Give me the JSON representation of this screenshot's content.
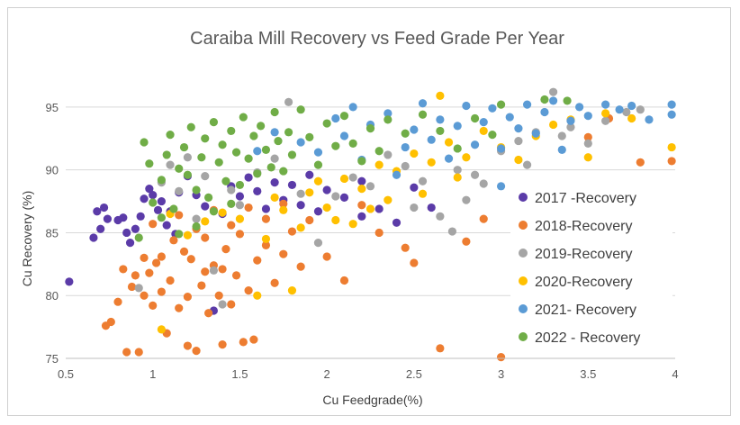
{
  "chart_data": {
    "type": "scatter",
    "title": "Caraiba Mill Recovery vs Feed Grade Per Year",
    "xlabel": "Cu Feedgrade(%)",
    "ylabel": "Cu Recovery (%)",
    "xlim": [
      0.5,
      4
    ],
    "ylim": [
      75,
      97
    ],
    "xticks": [
      "0.5",
      "1",
      "1.5",
      "2",
      "2.5",
      "3",
      "3.5",
      "4"
    ],
    "yticks": [
      "75",
      "80",
      "85",
      "90",
      "95"
    ],
    "grid": "horizontal",
    "legend_position": "right",
    "series": [
      {
        "name": "2017 -Recovery",
        "color": "#5b3ba8",
        "points": [
          [
            0.52,
            81.1
          ],
          [
            0.66,
            84.6
          ],
          [
            0.68,
            86.7
          ],
          [
            0.72,
            87.0
          ],
          [
            0.74,
            86.1
          ],
          [
            0.7,
            85.3
          ],
          [
            0.8,
            86.0
          ],
          [
            0.83,
            86.2
          ],
          [
            0.85,
            85.0
          ],
          [
            0.87,
            84.2
          ],
          [
            0.9,
            85.3
          ],
          [
            0.93,
            86.3
          ],
          [
            0.95,
            87.7
          ],
          [
            0.98,
            88.5
          ],
          [
            1.0,
            88.0
          ],
          [
            1.03,
            86.8
          ],
          [
            1.05,
            87.5
          ],
          [
            1.08,
            85.6
          ],
          [
            1.1,
            86.7
          ],
          [
            1.13,
            84.9
          ],
          [
            1.15,
            88.2
          ],
          [
            1.2,
            89.5
          ],
          [
            1.25,
            88.0
          ],
          [
            1.3,
            87.1
          ],
          [
            1.35,
            78.8
          ],
          [
            1.4,
            86.5
          ],
          [
            1.45,
            88.7
          ],
          [
            1.5,
            87.9
          ],
          [
            1.55,
            89.4
          ],
          [
            1.6,
            88.3
          ],
          [
            1.65,
            86.9
          ],
          [
            1.7,
            89.0
          ],
          [
            1.75,
            87.6
          ],
          [
            1.8,
            88.8
          ],
          [
            1.85,
            87.2
          ],
          [
            1.9,
            89.6
          ],
          [
            2.0,
            88.4
          ],
          [
            2.1,
            87.8
          ],
          [
            2.2,
            89.1
          ],
          [
            2.3,
            86.9
          ],
          [
            2.4,
            85.8
          ],
          [
            2.5,
            88.6
          ],
          [
            2.6,
            87.0
          ],
          [
            2.2,
            86.3
          ],
          [
            1.95,
            86.7
          ]
        ]
      },
      {
        "name": "2018-Recovery",
        "color": "#ed7d31",
        "points": [
          [
            0.73,
            77.6
          ],
          [
            0.76,
            77.9
          ],
          [
            0.8,
            79.5
          ],
          [
            0.83,
            82.1
          ],
          [
            0.85,
            75.5
          ],
          [
            0.88,
            80.7
          ],
          [
            0.9,
            81.6
          ],
          [
            0.92,
            75.5
          ],
          [
            0.95,
            83.0
          ],
          [
            0.98,
            81.8
          ],
          [
            1.0,
            79.2
          ],
          [
            1.02,
            82.6
          ],
          [
            1.05,
            80.3
          ],
          [
            1.08,
            77.0
          ],
          [
            1.1,
            81.2
          ],
          [
            1.12,
            84.4
          ],
          [
            1.15,
            79.0
          ],
          [
            1.18,
            83.5
          ],
          [
            1.2,
            76.0
          ],
          [
            1.22,
            82.9
          ],
          [
            1.25,
            75.6
          ],
          [
            1.28,
            80.8
          ],
          [
            1.3,
            84.6
          ],
          [
            1.32,
            78.6
          ],
          [
            1.35,
            82.4
          ],
          [
            1.38,
            80.0
          ],
          [
            1.4,
            76.1
          ],
          [
            1.42,
            83.7
          ],
          [
            1.45,
            79.3
          ],
          [
            1.48,
            81.6
          ],
          [
            1.5,
            84.9
          ],
          [
            1.52,
            76.3
          ],
          [
            1.55,
            80.4
          ],
          [
            1.58,
            76.5
          ],
          [
            1.6,
            82.8
          ],
          [
            1.65,
            84.0
          ],
          [
            1.7,
            81.0
          ],
          [
            1.75,
            83.3
          ],
          [
            1.8,
            85.1
          ],
          [
            1.85,
            82.3
          ],
          [
            1.9,
            86.0
          ],
          [
            2.0,
            83.1
          ],
          [
            2.1,
            81.2
          ],
          [
            2.2,
            87.2
          ],
          [
            2.3,
            85.0
          ],
          [
            2.45,
            83.8
          ],
          [
            2.5,
            82.6
          ],
          [
            2.65,
            75.8
          ],
          [
            2.8,
            84.3
          ],
          [
            2.9,
            86.1
          ],
          [
            3.0,
            75.1
          ],
          [
            3.1,
            87.7
          ],
          [
            3.3,
            88.5
          ],
          [
            3.5,
            92.6
          ],
          [
            3.62,
            94.1
          ],
          [
            3.8,
            90.6
          ],
          [
            3.98,
            90.7
          ],
          [
            1.0,
            85.7
          ],
          [
            1.15,
            86.4
          ],
          [
            1.25,
            85.3
          ],
          [
            1.35,
            86.8
          ],
          [
            1.05,
            83.1
          ],
          [
            0.95,
            80.0
          ],
          [
            1.3,
            81.9
          ],
          [
            1.45,
            85.6
          ],
          [
            1.55,
            87.0
          ],
          [
            1.65,
            86.1
          ],
          [
            1.75,
            87.3
          ],
          [
            1.2,
            79.9
          ],
          [
            1.4,
            82.1
          ]
        ]
      },
      {
        "name": "2019-Recovery",
        "color": "#a5a5a5",
        "points": [
          [
            0.92,
            80.6
          ],
          [
            1.05,
            89.0
          ],
          [
            1.1,
            90.4
          ],
          [
            1.15,
            88.3
          ],
          [
            1.2,
            91.0
          ],
          [
            1.3,
            89.5
          ],
          [
            1.35,
            82.0
          ],
          [
            1.4,
            79.3
          ],
          [
            1.5,
            87.2
          ],
          [
            1.6,
            89.8
          ],
          [
            1.7,
            90.9
          ],
          [
            1.78,
            95.4
          ],
          [
            1.85,
            88.1
          ],
          [
            1.95,
            84.2
          ],
          [
            2.05,
            87.9
          ],
          [
            2.15,
            89.4
          ],
          [
            2.25,
            88.7
          ],
          [
            2.35,
            91.2
          ],
          [
            2.45,
            90.3
          ],
          [
            2.55,
            89.1
          ],
          [
            2.65,
            86.3
          ],
          [
            2.72,
            85.1
          ],
          [
            2.8,
            87.6
          ],
          [
            2.9,
            88.9
          ],
          [
            3.0,
            91.5
          ],
          [
            3.1,
            92.3
          ],
          [
            3.2,
            93.0
          ],
          [
            3.3,
            96.2
          ],
          [
            3.4,
            93.4
          ],
          [
            3.5,
            92.1
          ],
          [
            3.6,
            93.9
          ],
          [
            3.72,
            94.6
          ],
          [
            3.8,
            94.8
          ],
          [
            2.5,
            87.0
          ],
          [
            2.85,
            89.6
          ],
          [
            3.15,
            90.4
          ],
          [
            1.25,
            86.1
          ],
          [
            1.45,
            88.4
          ],
          [
            2.75,
            90.0
          ],
          [
            3.35,
            92.7
          ]
        ]
      },
      {
        "name": "2020-Recovery",
        "color": "#ffc000",
        "points": [
          [
            1.05,
            77.3
          ],
          [
            1.1,
            86.5
          ],
          [
            1.2,
            84.8
          ],
          [
            1.3,
            85.9
          ],
          [
            1.4,
            86.6
          ],
          [
            1.5,
            86.1
          ],
          [
            1.6,
            80.0
          ],
          [
            1.7,
            87.8
          ],
          [
            1.8,
            80.4
          ],
          [
            1.85,
            85.4
          ],
          [
            1.9,
            88.2
          ],
          [
            2.0,
            87.0
          ],
          [
            2.05,
            86.0
          ],
          [
            2.1,
            89.3
          ],
          [
            2.2,
            88.5
          ],
          [
            2.3,
            90.4
          ],
          [
            2.35,
            87.6
          ],
          [
            2.4,
            89.9
          ],
          [
            2.5,
            91.3
          ],
          [
            2.55,
            88.1
          ],
          [
            2.6,
            90.6
          ],
          [
            2.7,
            92.2
          ],
          [
            2.75,
            89.4
          ],
          [
            2.8,
            91.0
          ],
          [
            2.9,
            93.1
          ],
          [
            3.0,
            91.8
          ],
          [
            3.1,
            90.8
          ],
          [
            3.2,
            92.7
          ],
          [
            3.3,
            93.6
          ],
          [
            3.4,
            94.0
          ],
          [
            3.5,
            91.0
          ],
          [
            3.6,
            94.5
          ],
          [
            3.75,
            94.1
          ],
          [
            3.98,
            91.8
          ],
          [
            2.65,
            95.9
          ],
          [
            2.25,
            86.9
          ],
          [
            2.15,
            85.7
          ],
          [
            1.95,
            89.1
          ],
          [
            1.75,
            86.8
          ],
          [
            1.65,
            84.5
          ]
        ]
      },
      {
        "name": "2021- Recovery",
        "color": "#5b9bd5",
        "points": [
          [
            1.6,
            91.5
          ],
          [
            1.7,
            93.0
          ],
          [
            1.85,
            92.2
          ],
          [
            1.95,
            91.4
          ],
          [
            2.05,
            94.1
          ],
          [
            2.1,
            92.7
          ],
          [
            2.15,
            95.0
          ],
          [
            2.2,
            90.8
          ],
          [
            2.25,
            93.6
          ],
          [
            2.35,
            94.5
          ],
          [
            2.45,
            91.8
          ],
          [
            2.5,
            93.2
          ],
          [
            2.55,
            95.3
          ],
          [
            2.6,
            92.4
          ],
          [
            2.65,
            94.0
          ],
          [
            2.7,
            90.9
          ],
          [
            2.75,
            93.5
          ],
          [
            2.8,
            95.1
          ],
          [
            2.85,
            92.0
          ],
          [
            2.9,
            93.8
          ],
          [
            2.95,
            94.9
          ],
          [
            3.0,
            91.7
          ],
          [
            3.05,
            94.2
          ],
          [
            3.1,
            93.3
          ],
          [
            3.15,
            95.2
          ],
          [
            3.2,
            92.9
          ],
          [
            3.25,
            94.6
          ],
          [
            3.3,
            95.5
          ],
          [
            3.35,
            91.6
          ],
          [
            3.4,
            93.9
          ],
          [
            3.45,
            95.0
          ],
          [
            3.5,
            94.3
          ],
          [
            3.6,
            95.2
          ],
          [
            3.68,
            94.8
          ],
          [
            3.75,
            95.1
          ],
          [
            3.85,
            94.0
          ],
          [
            3.98,
            95.2
          ],
          [
            3.98,
            94.4
          ],
          [
            3.0,
            88.7
          ],
          [
            2.4,
            89.6
          ]
        ]
      },
      {
        "name": "2022 - Recovery",
        "color": "#70ad47",
        "points": [
          [
            0.92,
            84.6
          ],
          [
            0.95,
            92.2
          ],
          [
            0.98,
            90.5
          ],
          [
            1.0,
            87.4
          ],
          [
            1.05,
            89.2
          ],
          [
            1.08,
            91.2
          ],
          [
            1.1,
            92.8
          ],
          [
            1.12,
            86.9
          ],
          [
            1.15,
            90.1
          ],
          [
            1.18,
            91.8
          ],
          [
            1.2,
            89.6
          ],
          [
            1.22,
            93.4
          ],
          [
            1.25,
            88.4
          ],
          [
            1.28,
            91.0
          ],
          [
            1.3,
            92.5
          ],
          [
            1.32,
            87.8
          ],
          [
            1.35,
            93.8
          ],
          [
            1.38,
            90.6
          ],
          [
            1.4,
            92.0
          ],
          [
            1.42,
            89.1
          ],
          [
            1.45,
            93.1
          ],
          [
            1.48,
            91.4
          ],
          [
            1.5,
            88.8
          ],
          [
            1.52,
            94.2
          ],
          [
            1.55,
            90.9
          ],
          [
            1.58,
            92.7
          ],
          [
            1.6,
            89.7
          ],
          [
            1.62,
            93.5
          ],
          [
            1.65,
            91.6
          ],
          [
            1.68,
            90.2
          ],
          [
            1.7,
            94.6
          ],
          [
            1.72,
            92.3
          ],
          [
            1.75,
            89.9
          ],
          [
            1.78,
            93.0
          ],
          [
            1.8,
            91.2
          ],
          [
            1.85,
            94.8
          ],
          [
            1.9,
            92.6
          ],
          [
            1.95,
            90.4
          ],
          [
            2.0,
            93.7
          ],
          [
            2.05,
            91.9
          ],
          [
            2.1,
            94.3
          ],
          [
            2.15,
            92.1
          ],
          [
            2.2,
            90.7
          ],
          [
            2.25,
            93.3
          ],
          [
            2.3,
            91.5
          ],
          [
            2.35,
            94.0
          ],
          [
            2.45,
            92.9
          ],
          [
            2.55,
            94.4
          ],
          [
            2.65,
            93.1
          ],
          [
            2.75,
            91.7
          ],
          [
            2.85,
            94.1
          ],
          [
            2.95,
            92.8
          ],
          [
            3.0,
            95.2
          ],
          [
            3.25,
            95.6
          ],
          [
            3.38,
            95.5
          ],
          [
            1.25,
            85.5
          ],
          [
            1.15,
            84.9
          ],
          [
            1.05,
            86.2
          ],
          [
            1.35,
            86.7
          ],
          [
            1.45,
            87.3
          ]
        ]
      }
    ]
  }
}
